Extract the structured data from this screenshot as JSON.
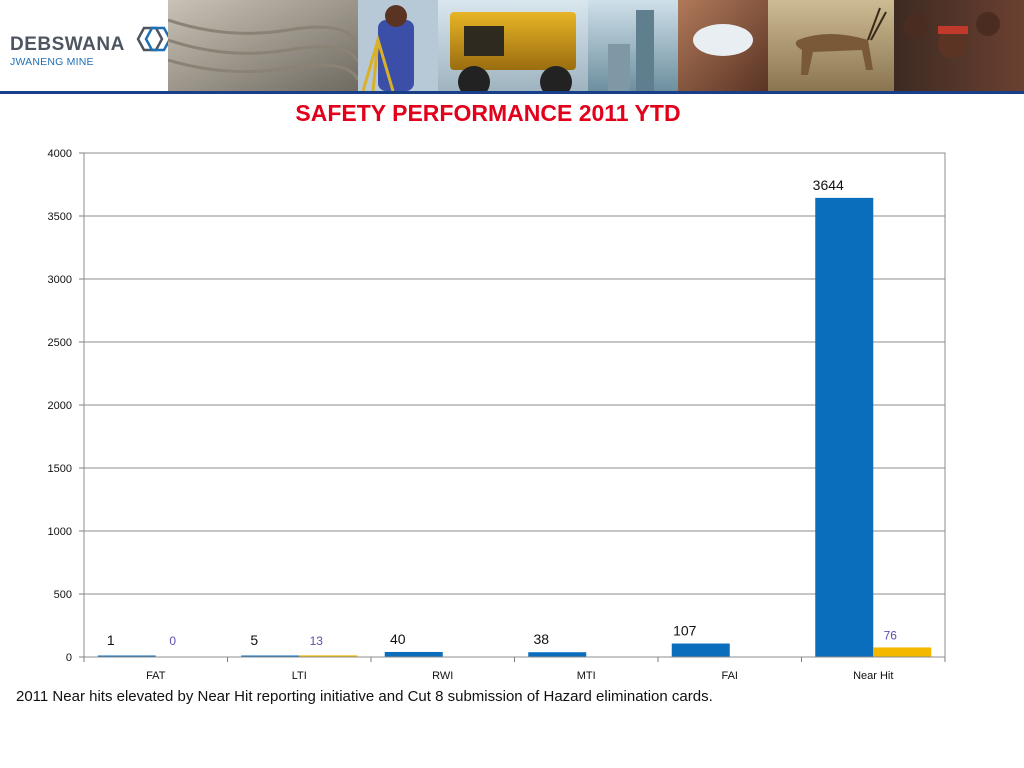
{
  "header": {
    "logo_name": "DEBSWANA",
    "logo_subtitle": "JWANENG MINE"
  },
  "slide": {
    "title": "SAFETY PERFORMANCE 2011 YTD",
    "footnote": "2011 Near hits elevated by  Near Hit reporting initiative and Cut 8 submission of Hazard elimination cards."
  },
  "colors": {
    "series_2011": "#0a6ebd",
    "series_2": "#f5b800",
    "title": "#e3001b",
    "header_line": "#1a3f8a"
  },
  "chart_data": {
    "type": "bar",
    "categories": [
      "FAT",
      "LTI",
      "RWI",
      "MTI",
      "FAI",
      "Near Hit"
    ],
    "series": [
      {
        "values": [
          1,
          5,
          40,
          38,
          107,
          3644
        ],
        "labels": [
          "1",
          "5",
          "40",
          "38",
          "107",
          "3644"
        ]
      },
      {
        "values": [
          0,
          13,
          0,
          0,
          0,
          76
        ],
        "labels": [
          "0",
          "13",
          null,
          null,
          null,
          "76"
        ]
      }
    ],
    "ylim": [
      0,
      4000
    ],
    "yticks": [
      0,
      500,
      1000,
      1500,
      2000,
      2500,
      3000,
      3500,
      4000
    ],
    "grid": true,
    "legend": "none"
  }
}
